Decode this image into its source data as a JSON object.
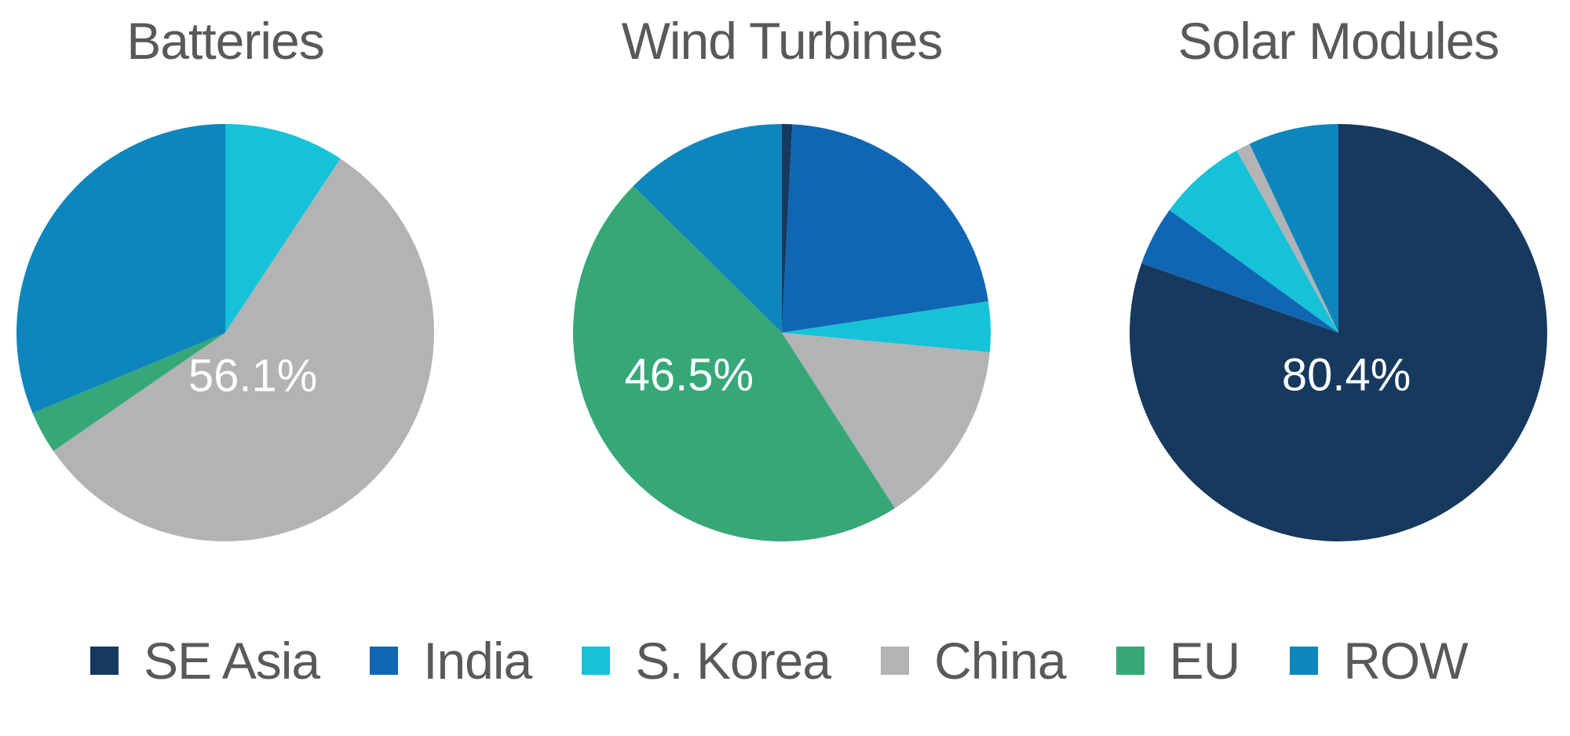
{
  "legend": {
    "position": "bottom",
    "entries": [
      {
        "label": "SE Asia",
        "color": "#16395D"
      },
      {
        "label": "India",
        "color": "#1066B2"
      },
      {
        "label": "S. Korea",
        "color": "#15C2D8"
      },
      {
        "label": "China",
        "color": "#B2B3B5"
      },
      {
        "label": "EU",
        "color": "#36A877"
      },
      {
        "label": "ROW",
        "color": "#0E86BD"
      }
    ]
  },
  "text_color": "#58595B",
  "label_color": "#FFFFFF",
  "chart_data": [
    {
      "type": "pie",
      "title": "Batteries",
      "categories": [
        "SE Asia",
        "India",
        "S. Korea",
        "China",
        "EU",
        "ROW"
      ],
      "values": [
        0,
        0,
        9.3,
        56.1,
        3.3,
        31.3
      ],
      "unit": "%",
      "start_angle_deg": 0,
      "direction": "clockwise",
      "inside_label": {
        "text": "56.1%",
        "slice": "China"
      }
    },
    {
      "type": "pie",
      "title": "Wind Turbines",
      "categories": [
        "SE Asia",
        "India",
        "S. Korea",
        "China",
        "EU",
        "ROW"
      ],
      "values": [
        0.8,
        21.8,
        3.9,
        14.4,
        46.5,
        12.6
      ],
      "unit": "%",
      "start_angle_deg": 0,
      "direction": "clockwise",
      "inside_label": {
        "text": "46.5%",
        "slice": "EU"
      }
    },
    {
      "type": "pie",
      "title": "Solar Modules",
      "categories": [
        "SE Asia",
        "India",
        "S. Korea",
        "China",
        "EU",
        "ROW"
      ],
      "values": [
        80.4,
        4.6,
        6.9,
        1.1,
        0,
        7.0
      ],
      "unit": "%",
      "start_angle_deg": 0,
      "direction": "clockwise",
      "inside_label": {
        "text": "80.4%",
        "slice": "SE Asia"
      }
    }
  ]
}
